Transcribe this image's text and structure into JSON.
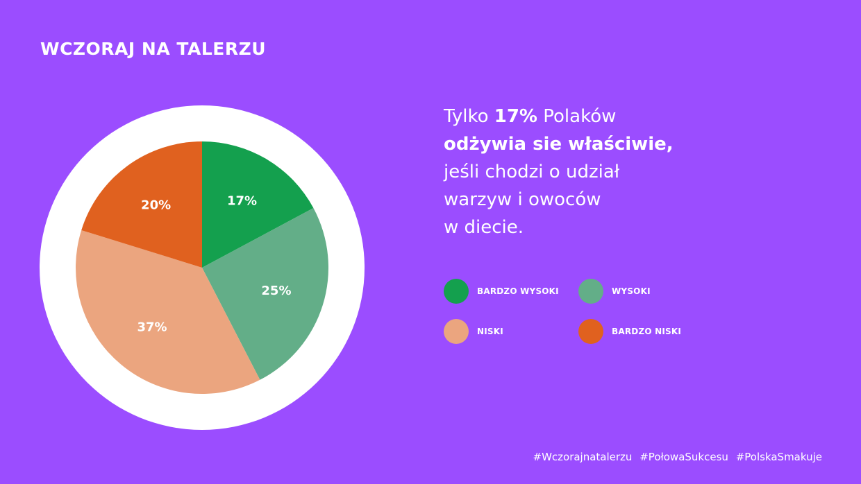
{
  "page": {
    "title": "WCZORAJ NA TALERZU",
    "headline": {
      "p1": "Tylko ",
      "b1": "17%",
      "p2": " Polaków",
      "b2": "odżywia sie właściwie,",
      "p3": "jeśli chodzi o udział",
      "p4": "warzyw i owoców",
      "p5": "w diecie."
    },
    "hashtags": [
      "#Wczorajnatalerzu",
      "#PołowaSukcesu",
      "#PolskaSmakuje"
    ]
  },
  "colors": {
    "background": "#9b4dff",
    "ring": "#ffffff",
    "bardzo_wysoki": "#14a04e",
    "wysoki": "#63ae88",
    "niski": "#eba57f",
    "bardzo_niski": "#e0611f"
  },
  "chart_data": {
    "type": "pie",
    "title": "",
    "slices": [
      {
        "label": "BARDZO WYSOKI",
        "value": 17,
        "display": "17%",
        "color": "#14a04e"
      },
      {
        "label": "WYSOKI",
        "value": 25,
        "display": "25%",
        "color": "#63ae88"
      },
      {
        "label": "NISKI",
        "value": 37,
        "display": "37%",
        "color": "#eba57f"
      },
      {
        "label": "BARDZO NISKI",
        "value": 20,
        "display": "20%",
        "color": "#e0611f"
      }
    ],
    "start": "top",
    "direction": "clockwise",
    "legend_position": "right"
  },
  "legend": [
    {
      "label": "BARDZO WYSOKI",
      "color": "#14a04e"
    },
    {
      "label": "WYSOKI",
      "color": "#63ae88"
    },
    {
      "label": "NISKI",
      "color": "#eba57f"
    },
    {
      "label": "BARDZO NISKI",
      "color": "#e0611f"
    }
  ]
}
